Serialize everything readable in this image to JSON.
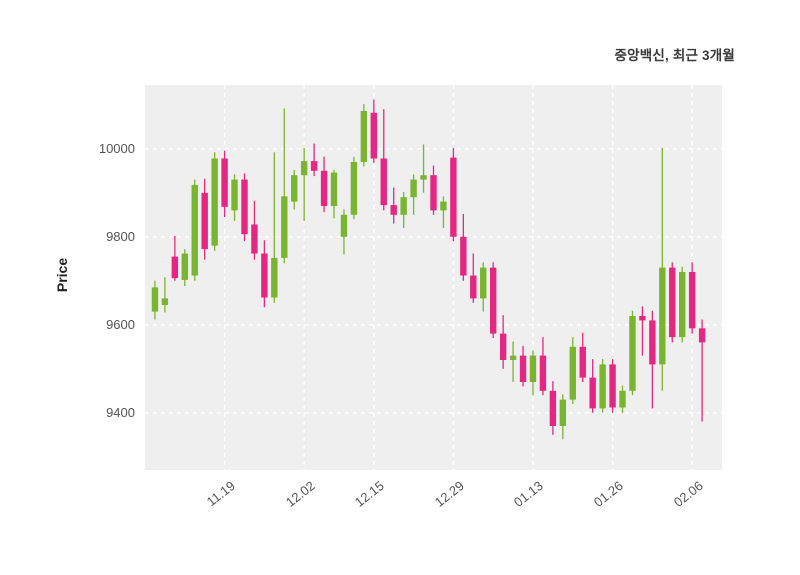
{
  "header": {
    "title": "중앙백신, 최근 3개월"
  },
  "chart_data": {
    "type": "candlestick",
    "title": "중앙백신, 최근 3개월",
    "xlabel": "",
    "ylabel": "Price",
    "ylim": [
      9270,
      10145
    ],
    "yticks": [
      9400,
      9600,
      9800,
      10000
    ],
    "xticks": [
      {
        "index": 7,
        "label": "11.19"
      },
      {
        "index": 15,
        "label": "12.02"
      },
      {
        "index": 22,
        "label": "12.15"
      },
      {
        "index": 30,
        "label": "12.29"
      },
      {
        "index": 38,
        "label": "01.13"
      },
      {
        "index": 46,
        "label": "01.26"
      },
      {
        "index": 54,
        "label": "02.06"
      }
    ],
    "grid": "white dashed lines on light gray panel",
    "legend": "none",
    "up_color": "#79b530",
    "down_color": "#e22882",
    "plot_bg": "#efefef",
    "candles_format": [
      "open",
      "high",
      "low",
      "close"
    ],
    "candles": [
      [
        9630,
        9700,
        9612,
        9685
      ],
      [
        9645,
        9708,
        9628,
        9660
      ],
      [
        9755,
        9802,
        9700,
        9706
      ],
      [
        9702,
        9772,
        9688,
        9762
      ],
      [
        9712,
        9930,
        9700,
        9918
      ],
      [
        9900,
        9932,
        9748,
        9772
      ],
      [
        9780,
        9992,
        9768,
        9978
      ],
      [
        9978,
        9996,
        9845,
        9868
      ],
      [
        9860,
        9942,
        9836,
        9930
      ],
      [
        9930,
        9944,
        9790,
        9806
      ],
      [
        9828,
        9882,
        9748,
        9762
      ],
      [
        9762,
        9792,
        9640,
        9662
      ],
      [
        9662,
        9992,
        9650,
        9752
      ],
      [
        9752,
        10092,
        9740,
        9892
      ],
      [
        9880,
        9952,
        9862,
        9940
      ],
      [
        9940,
        10002,
        9836,
        9972
      ],
      [
        9972,
        10012,
        9938,
        9950
      ],
      [
        9950,
        9982,
        9856,
        9870
      ],
      [
        9870,
        9952,
        9842,
        9946
      ],
      [
        9800,
        9862,
        9760,
        9850
      ],
      [
        9850,
        9982,
        9840,
        9970
      ],
      [
        9970,
        10102,
        9960,
        10086
      ],
      [
        10082,
        10112,
        9968,
        9978
      ],
      [
        9978,
        10090,
        9860,
        9872
      ],
      [
        9872,
        9912,
        9830,
        9850
      ],
      [
        9850,
        9902,
        9820,
        9890
      ],
      [
        9890,
        9942,
        9850,
        9930
      ],
      [
        9930,
        10010,
        9900,
        9940
      ],
      [
        9940,
        9962,
        9850,
        9860
      ],
      [
        9860,
        9892,
        9820,
        9880
      ],
      [
        9980,
        10002,
        9790,
        9800
      ],
      [
        9800,
        9852,
        9700,
        9712
      ],
      [
        9712,
        9762,
        9650,
        9660
      ],
      [
        9660,
        9742,
        9630,
        9730
      ],
      [
        9730,
        9742,
        9570,
        9580
      ],
      [
        9580,
        9622,
        9500,
        9520
      ],
      [
        9520,
        9562,
        9470,
        9530
      ],
      [
        9530,
        9552,
        9460,
        9470
      ],
      [
        9470,
        9542,
        9440,
        9530
      ],
      [
        9530,
        9572,
        9440,
        9450
      ],
      [
        9450,
        9472,
        9350,
        9370
      ],
      [
        9370,
        9442,
        9340,
        9430
      ],
      [
        9430,
        9572,
        9420,
        9550
      ],
      [
        9550,
        9582,
        9470,
        9480
      ],
      [
        9480,
        9522,
        9400,
        9410
      ],
      [
        9410,
        9522,
        9400,
        9510
      ],
      [
        9510,
        9522,
        9400,
        9412
      ],
      [
        9412,
        9462,
        9400,
        9450
      ],
      [
        9450,
        9632,
        9440,
        9620
      ],
      [
        9620,
        9642,
        9530,
        9610
      ],
      [
        9610,
        9632,
        9410,
        9510
      ],
      [
        9510,
        10002,
        9450,
        9730
      ],
      [
        9730,
        9742,
        9560,
        9572
      ],
      [
        9572,
        9732,
        9560,
        9720
      ],
      [
        9720,
        9742,
        9580,
        9592
      ],
      [
        9592,
        9612,
        9380,
        9560
      ]
    ]
  }
}
